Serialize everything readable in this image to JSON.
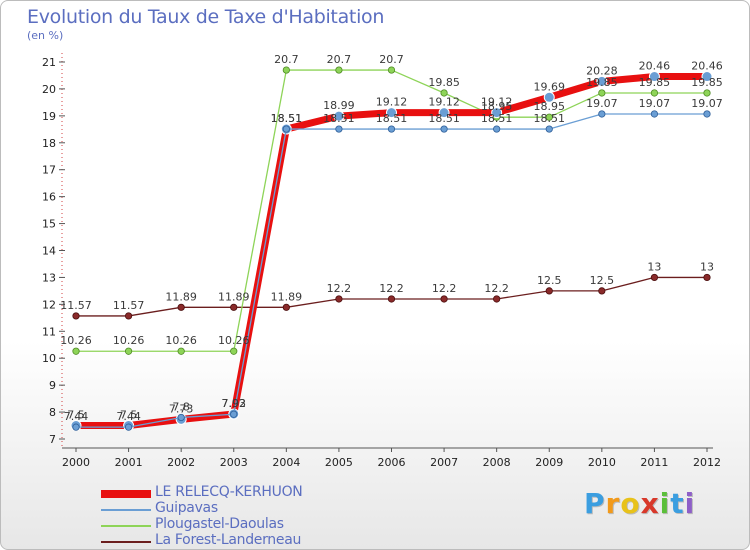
{
  "chart_data": {
    "type": "line",
    "title": "Evolution du Taux de Taxe d'Habitation",
    "unit_label": "(en %)",
    "x": [
      "2000",
      "2001",
      "2002",
      "2003",
      "2004",
      "2005",
      "2006",
      "2007",
      "2008",
      "2009",
      "2010",
      "2011",
      "2012"
    ],
    "yticks": [
      7,
      8,
      9,
      10,
      11,
      12,
      13,
      14,
      15,
      16,
      17,
      18,
      19,
      20,
      21
    ],
    "ylim": [
      7,
      21
    ],
    "grid": false,
    "legend_position": "bottom-left",
    "series": [
      {
        "name": "LE RELECQ-KERHUON",
        "color": "#e81010",
        "values": [
          7.5,
          7.5,
          7.73,
          7.93,
          18.51,
          18.99,
          19.12,
          19.12,
          19.12,
          19.69,
          20.28,
          20.46,
          20.46
        ],
        "labels": [
          "7.5",
          "7.5",
          "7.73",
          "7.93",
          "18.51",
          "18.99",
          "19.12",
          "19.12",
          "19.12",
          "19.69",
          "20.28",
          "20.46",
          "20.46"
        ]
      },
      {
        "name": "Guipavas",
        "color": "#6a9ed4",
        "values": [
          7.44,
          7.44,
          7.8,
          7.92,
          18.51,
          18.51,
          18.51,
          18.51,
          18.51,
          18.51,
          19.07,
          19.07,
          19.07
        ],
        "labels": [
          "7.44",
          "7.44",
          "7.8",
          "7.92",
          "18.51",
          "18.51",
          "18.51",
          "18.51",
          "18.51",
          "18.51",
          "19.07",
          "19.07",
          "19.07"
        ]
      },
      {
        "name": "Plougastel-Daoulas",
        "color": "#8ed458",
        "values": [
          10.26,
          10.26,
          10.26,
          10.26,
          20.7,
          20.7,
          20.7,
          19.85,
          18.95,
          18.95,
          19.85,
          19.85,
          19.85
        ],
        "labels": [
          "10.26",
          "10.26",
          "10.26",
          "10.26",
          "20.7",
          "20.7",
          "20.7",
          "19.85",
          "18.95",
          "18.95",
          "19.85",
          "19.85",
          "19.85"
        ]
      },
      {
        "name": "La Forest-Landerneau",
        "color": "#6b1e1e",
        "values": [
          11.57,
          11.57,
          11.89,
          11.89,
          11.89,
          12.2,
          12.2,
          12.2,
          12.2,
          12.5,
          12.5,
          13,
          13
        ],
        "labels": [
          "11.57",
          "11.57",
          "11.89",
          "11.89",
          "11.89",
          "12.2",
          "12.2",
          "12.2",
          "12.2",
          "12.5",
          "12.5",
          "13",
          "13"
        ]
      }
    ]
  },
  "logo": {
    "letters": [
      "P",
      "r",
      "o",
      "x",
      "i",
      "t",
      "i"
    ],
    "colors": [
      "#3b9ee0",
      "#f29a1b",
      "#e8c21a",
      "#d8382a",
      "#5bbf3a",
      "#3b9ee0",
      "#8e5fc8"
    ]
  }
}
